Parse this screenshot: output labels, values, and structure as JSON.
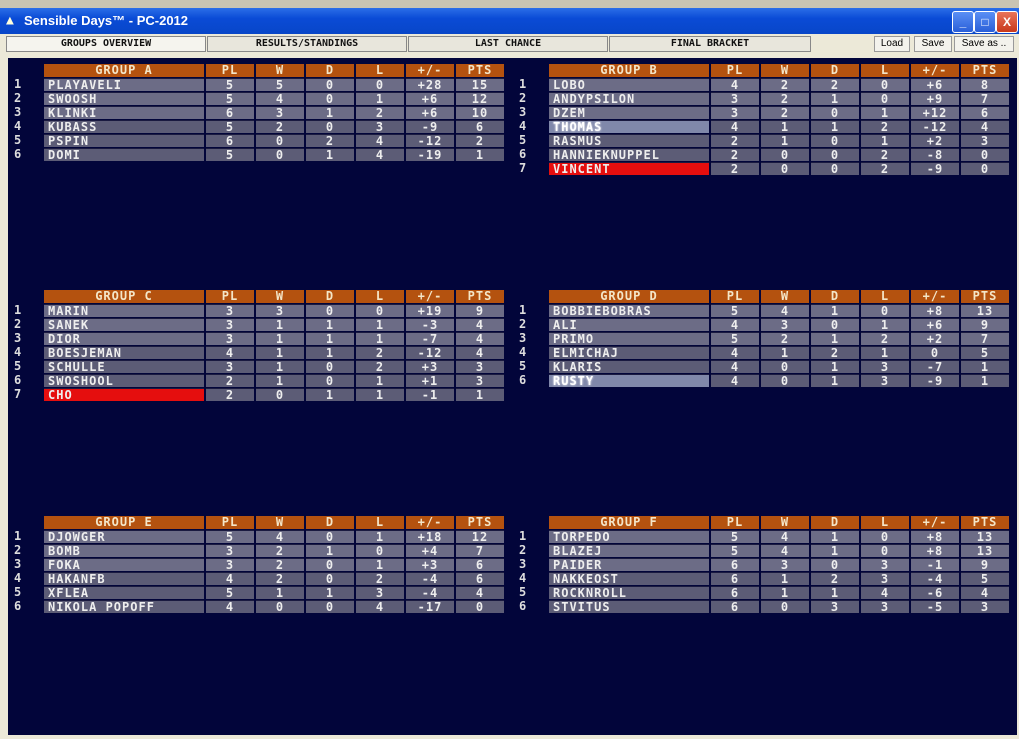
{
  "window": {
    "title": "Sensible Days™ - PC-2012",
    "minimize": "_",
    "maximize": "□",
    "close": "X"
  },
  "tabs": [
    {
      "label": "GROUPS OVERVIEW",
      "active": true
    },
    {
      "label": "RESULTS/STANDINGS",
      "active": false
    },
    {
      "label": "LAST CHANCE",
      "active": false
    },
    {
      "label": "FINAL BRACKET",
      "active": false
    }
  ],
  "toolbar": {
    "load": "Load",
    "save": "Save",
    "save_as": "Save as .."
  },
  "columns": [
    "PL",
    "W",
    "D",
    "L",
    "+/-",
    "PTS"
  ],
  "colors": {
    "header": "#b4520f",
    "eliminated": "#e50e0e",
    "background": "#02053a"
  },
  "groups": [
    {
      "name": "GROUP A",
      "rows": [
        {
          "rank": "1",
          "name": "PLAYAVELI",
          "pl": "5",
          "w": "5",
          "d": "0",
          "l": "0",
          "gd": "+28",
          "pts": "15"
        },
        {
          "rank": "2",
          "name": "SWOOSH",
          "pl": "5",
          "w": "4",
          "d": "0",
          "l": "1",
          "gd": "+6",
          "pts": "12"
        },
        {
          "rank": "3",
          "name": "KLINKI",
          "pl": "6",
          "w": "3",
          "d": "1",
          "l": "2",
          "gd": "+6",
          "pts": "10"
        },
        {
          "rank": "4",
          "name": "KUBASS",
          "pl": "5",
          "w": "2",
          "d": "0",
          "l": "3",
          "gd": "-9",
          "pts": "6"
        },
        {
          "rank": "5",
          "name": "PSPIN",
          "pl": "6",
          "w": "0",
          "d": "2",
          "l": "4",
          "gd": "-12",
          "pts": "2"
        },
        {
          "rank": "6",
          "name": "DOMI",
          "pl": "5",
          "w": "0",
          "d": "1",
          "l": "4",
          "gd": "-19",
          "pts": "1"
        }
      ]
    },
    {
      "name": "GROUP B",
      "rows": [
        {
          "rank": "1",
          "name": "LOBO",
          "pl": "4",
          "w": "2",
          "d": "2",
          "l": "0",
          "gd": "+6",
          "pts": "8"
        },
        {
          "rank": "2",
          "name": "ANDYPSILON",
          "pl": "3",
          "w": "2",
          "d": "1",
          "l": "0",
          "gd": "+9",
          "pts": "7"
        },
        {
          "rank": "3",
          "name": "DZEM",
          "pl": "3",
          "w": "2",
          "d": "0",
          "l": "1",
          "gd": "+12",
          "pts": "6"
        },
        {
          "rank": "4",
          "name": "THOMAS",
          "pl": "4",
          "w": "1",
          "d": "1",
          "l": "2",
          "gd": "-12",
          "pts": "4",
          "state": "selected"
        },
        {
          "rank": "5",
          "name": "RASMUS",
          "pl": "2",
          "w": "1",
          "d": "0",
          "l": "1",
          "gd": "+2",
          "pts": "3"
        },
        {
          "rank": "6",
          "name": "HANNIEKNUPPEL",
          "pl": "2",
          "w": "0",
          "d": "0",
          "l": "2",
          "gd": "-8",
          "pts": "0"
        },
        {
          "rank": "7",
          "name": "VINCENT",
          "pl": "2",
          "w": "0",
          "d": "0",
          "l": "2",
          "gd": "-9",
          "pts": "0",
          "state": "eliminated"
        }
      ]
    },
    {
      "name": "GROUP C",
      "rows": [
        {
          "rank": "1",
          "name": "MARIN",
          "pl": "3",
          "w": "3",
          "d": "0",
          "l": "0",
          "gd": "+19",
          "pts": "9"
        },
        {
          "rank": "2",
          "name": "SANEK",
          "pl": "3",
          "w": "1",
          "d": "1",
          "l": "1",
          "gd": "-3",
          "pts": "4"
        },
        {
          "rank": "3",
          "name": "DIOR",
          "pl": "3",
          "w": "1",
          "d": "1",
          "l": "1",
          "gd": "-7",
          "pts": "4"
        },
        {
          "rank": "4",
          "name": "BOESJEMAN",
          "pl": "4",
          "w": "1",
          "d": "1",
          "l": "2",
          "gd": "-12",
          "pts": "4"
        },
        {
          "rank": "5",
          "name": "SCHULLE",
          "pl": "3",
          "w": "1",
          "d": "0",
          "l": "2",
          "gd": "+3",
          "pts": "3"
        },
        {
          "rank": "6",
          "name": "SWOSHOOL",
          "pl": "2",
          "w": "1",
          "d": "0",
          "l": "1",
          "gd": "+1",
          "pts": "3"
        },
        {
          "rank": "7",
          "name": "CHO",
          "pl": "2",
          "w": "0",
          "d": "1",
          "l": "1",
          "gd": "-1",
          "pts": "1",
          "state": "eliminated"
        }
      ]
    },
    {
      "name": "GROUP D",
      "rows": [
        {
          "rank": "1",
          "name": "BOBBIEBOBRAS",
          "pl": "5",
          "w": "4",
          "d": "1",
          "l": "0",
          "gd": "+8",
          "pts": "13"
        },
        {
          "rank": "2",
          "name": "ALI",
          "pl": "4",
          "w": "3",
          "d": "0",
          "l": "1",
          "gd": "+6",
          "pts": "9"
        },
        {
          "rank": "3",
          "name": "PRIMO",
          "pl": "5",
          "w": "2",
          "d": "1",
          "l": "2",
          "gd": "+2",
          "pts": "7"
        },
        {
          "rank": "4",
          "name": "ELMICHAJ",
          "pl": "4",
          "w": "1",
          "d": "2",
          "l": "1",
          "gd": "0",
          "pts": "5"
        },
        {
          "rank": "5",
          "name": "KLARIS",
          "pl": "4",
          "w": "0",
          "d": "1",
          "l": "3",
          "gd": "-7",
          "pts": "1"
        },
        {
          "rank": "6",
          "name": "RUSTY",
          "pl": "4",
          "w": "0",
          "d": "1",
          "l": "3",
          "gd": "-9",
          "pts": "1",
          "state": "selected"
        }
      ]
    },
    {
      "name": "GROUP E",
      "rows": [
        {
          "rank": "1",
          "name": "DJOWGER",
          "pl": "5",
          "w": "4",
          "d": "0",
          "l": "1",
          "gd": "+18",
          "pts": "12"
        },
        {
          "rank": "2",
          "name": "BOMB",
          "pl": "3",
          "w": "2",
          "d": "1",
          "l": "0",
          "gd": "+4",
          "pts": "7"
        },
        {
          "rank": "3",
          "name": "FOKA",
          "pl": "3",
          "w": "2",
          "d": "0",
          "l": "1",
          "gd": "+3",
          "pts": "6"
        },
        {
          "rank": "4",
          "name": "HAKANFB",
          "pl": "4",
          "w": "2",
          "d": "0",
          "l": "2",
          "gd": "-4",
          "pts": "6"
        },
        {
          "rank": "5",
          "name": "XFLEA",
          "pl": "5",
          "w": "1",
          "d": "1",
          "l": "3",
          "gd": "-4",
          "pts": "4"
        },
        {
          "rank": "6",
          "name": "NIKOLA POPOFF",
          "pl": "4",
          "w": "0",
          "d": "0",
          "l": "4",
          "gd": "-17",
          "pts": "0"
        }
      ]
    },
    {
      "name": "GROUP F",
      "rows": [
        {
          "rank": "1",
          "name": "TORPEDO",
          "pl": "5",
          "w": "4",
          "d": "1",
          "l": "0",
          "gd": "+8",
          "pts": "13"
        },
        {
          "rank": "2",
          "name": "BLAZEJ",
          "pl": "5",
          "w": "4",
          "d": "1",
          "l": "0",
          "gd": "+8",
          "pts": "13"
        },
        {
          "rank": "3",
          "name": "PAIDER",
          "pl": "6",
          "w": "3",
          "d": "0",
          "l": "3",
          "gd": "-1",
          "pts": "9"
        },
        {
          "rank": "4",
          "name": "NAKKEOST",
          "pl": "6",
          "w": "1",
          "d": "2",
          "l": "3",
          "gd": "-4",
          "pts": "5"
        },
        {
          "rank": "5",
          "name": "ROCKNROLL",
          "pl": "6",
          "w": "1",
          "d": "1",
          "l": "4",
          "gd": "-6",
          "pts": "4"
        },
        {
          "rank": "6",
          "name": "STVITUS",
          "pl": "6",
          "w": "0",
          "d": "3",
          "l": "3",
          "gd": "-5",
          "pts": "3"
        }
      ]
    }
  ]
}
